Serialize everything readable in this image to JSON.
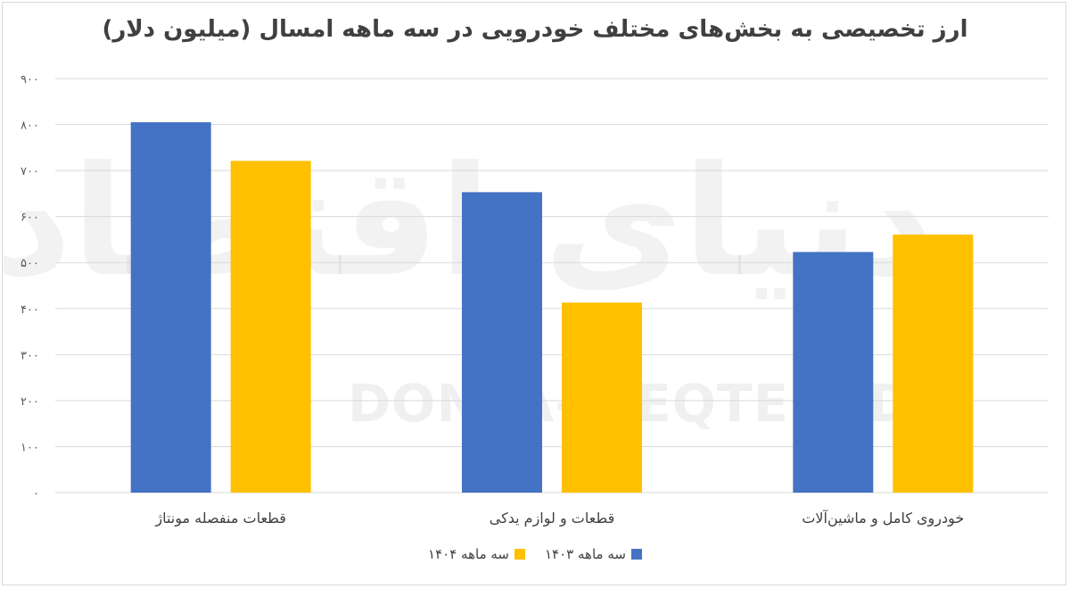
{
  "chart_data": {
    "type": "bar",
    "title": "ارز تخصیصی به بخش‌های مختلف خودرویی در سه ماهه امسال (میلیون دلار)",
    "categories": [
      "قطعات منفصله مونتاژ",
      "قطعات و لوازم یدکی",
      "خودروی کامل و ماشین‌آلات"
    ],
    "series": [
      {
        "name": "سه ماهه ۱۴۰۳",
        "color": "#4472c4",
        "values": [
          805,
          653,
          523
        ]
      },
      {
        "name": "سه ماهه ۱۴۰۴",
        "color": "#ffc000",
        "values": [
          721,
          413,
          561
        ]
      }
    ],
    "ylim": [
      0,
      900
    ],
    "yticks": [
      {
        "value": 0,
        "label": "۰"
      },
      {
        "value": 100,
        "label": "۱۰۰"
      },
      {
        "value": 200,
        "label": "۲۰۰"
      },
      {
        "value": 300,
        "label": "۳۰۰"
      },
      {
        "value": 400,
        "label": "۴۰۰"
      },
      {
        "value": 500,
        "label": "۵۰۰"
      },
      {
        "value": 600,
        "label": "۶۰۰"
      },
      {
        "value": 700,
        "label": "۷۰۰"
      },
      {
        "value": 800,
        "label": "۸۰۰"
      },
      {
        "value": 900,
        "label": "۹۰۰"
      }
    ],
    "grid": true,
    "legend_position": "bottom"
  },
  "watermark": {
    "persian": "دنیای اقتصاد",
    "latin": "DONYA-E-EQTESAD"
  }
}
